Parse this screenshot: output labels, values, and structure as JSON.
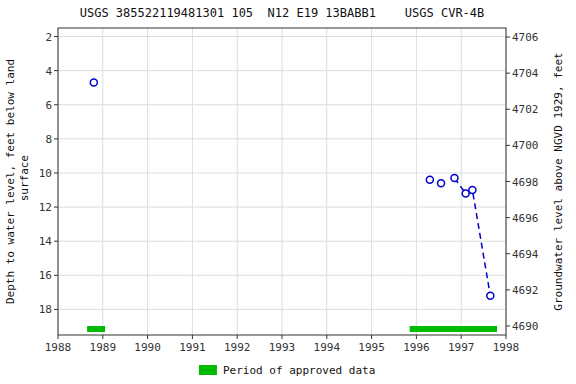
{
  "chart_data": {
    "type": "scatter",
    "title": "USGS 385522119481301 105  N12 E19 13BABB1    USGS CVR-4B",
    "y_label": "Depth to water level, feet below land\n surface",
    "y2_label": "Groundwater level above NGVD 1929, feet",
    "xlim": [
      1988.0,
      1998.0
    ],
    "xticks": [
      1988,
      1989,
      1990,
      1991,
      1992,
      1993,
      1994,
      1995,
      1996,
      1997,
      1998
    ],
    "ylim": [
      19.5,
      1.5
    ],
    "yticks": [
      2,
      4,
      6,
      8,
      10,
      12,
      14,
      16,
      18
    ],
    "y2lim": [
      4689.5,
      4706.5
    ],
    "y2ticks": [
      4690,
      4692,
      4694,
      4696,
      4698,
      4700,
      4702,
      4704,
      4706
    ],
    "grid": true,
    "legend": "bottom",
    "series": [
      {
        "type": "scatter",
        "color": "#0000cc",
        "marker": "circle",
        "x": [
          1988.8,
          1996.3,
          1996.55,
          1996.85,
          1997.1,
          1997.25,
          1997.65
        ],
        "values": [
          4.7,
          10.4,
          10.6,
          10.3,
          11.2,
          11.0,
          17.2
        ]
      },
      {
        "type": "line",
        "color": "#0000cc",
        "line_style": "dashed",
        "x": [
          1996.85,
          1997.1,
          1997.25,
          1997.65
        ],
        "values": [
          10.3,
          11.2,
          11.0,
          17.2
        ]
      },
      {
        "type": "bar",
        "orientation": "horizontal",
        "name": "Period of approved data",
        "color": "#00bb00",
        "x_start": [
          1988.65,
          1995.85
        ],
        "x_end": [
          1989.05,
          1997.8
        ]
      }
    ]
  }
}
